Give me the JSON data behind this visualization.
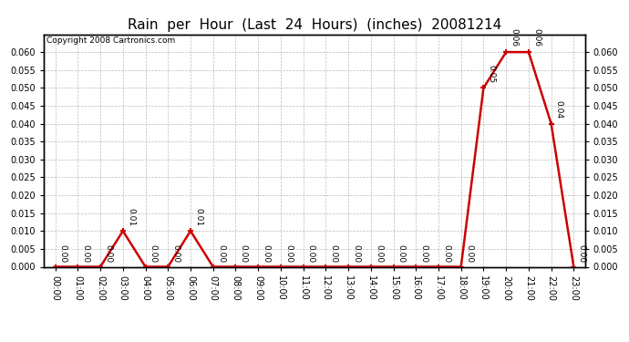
{
  "title": "Rain  per  Hour  (Last  24  Hours)  (inches)  20081214",
  "copyright": "Copyright 2008 Cartronics.com",
  "hours": [
    "00:00",
    "01:00",
    "02:00",
    "03:00",
    "04:00",
    "05:00",
    "06:00",
    "07:00",
    "08:00",
    "09:00",
    "10:00",
    "11:00",
    "12:00",
    "13:00",
    "14:00",
    "15:00",
    "16:00",
    "17:00",
    "18:00",
    "19:00",
    "20:00",
    "21:00",
    "22:00",
    "23:00"
  ],
  "values": [
    0.0,
    0.0,
    0.0,
    0.01,
    0.0,
    0.0,
    0.01,
    0.0,
    0.0,
    0.0,
    0.0,
    0.0,
    0.0,
    0.0,
    0.0,
    0.0,
    0.0,
    0.0,
    0.0,
    0.05,
    0.06,
    0.06,
    0.04,
    0.0
  ],
  "line_color": "#cc0000",
  "marker_color": "#cc0000",
  "bg_color": "#ffffff",
  "grid_color": "#bbbbbb",
  "ylim": [
    0.0,
    0.065
  ],
  "yticks": [
    0.0,
    0.005,
    0.01,
    0.015,
    0.02,
    0.025,
    0.03,
    0.035,
    0.04,
    0.045,
    0.05,
    0.055,
    0.06
  ],
  "title_fontsize": 11,
  "tick_fontsize": 7,
  "annotation_fontsize": 6.5,
  "copyright_fontsize": 6.5
}
